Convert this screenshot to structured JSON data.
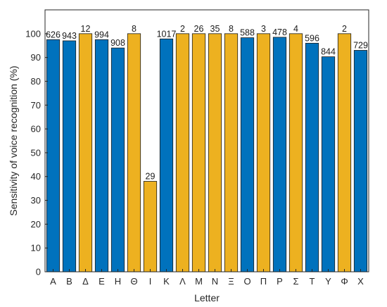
{
  "chart_data": {
    "type": "bar",
    "xlabel": "Letter",
    "ylabel": "Sensitivity of voice recognition (%)",
    "ylim": [
      0,
      110
    ],
    "yticks": [
      0,
      10,
      20,
      30,
      40,
      50,
      60,
      70,
      80,
      90,
      100
    ],
    "grid": false,
    "legend": "none",
    "categories": [
      "Α",
      "Β",
      "Δ",
      "Ε",
      "Η",
      "Θ",
      "Ι",
      "Κ",
      "Λ",
      "Μ",
      "Ν",
      "Ξ",
      "Ο",
      "Π",
      "Ρ",
      "Σ",
      "Τ",
      "Υ",
      "Φ",
      "Χ"
    ],
    "values": [
      97.5,
      97,
      100,
      97.5,
      94,
      100,
      38,
      97.8,
      100,
      100,
      100,
      100,
      98.3,
      100,
      98.5,
      100,
      96,
      90.3,
      100,
      93
    ],
    "data_labels": [
      "626",
      "943",
      "12",
      "994",
      "908",
      "8",
      "29",
      "1017",
      "2",
      "26",
      "35",
      "8",
      "588",
      "3",
      "478",
      "4",
      "596",
      "844",
      "2",
      "729"
    ],
    "bar_colors": [
      "#0072BD",
      "#0072BD",
      "#EDB120",
      "#0072BD",
      "#0072BD",
      "#EDB120",
      "#EDB120",
      "#0072BD",
      "#EDB120",
      "#EDB120",
      "#EDB120",
      "#EDB120",
      "#0072BD",
      "#EDB120",
      "#0072BD",
      "#EDB120",
      "#0072BD",
      "#0072BD",
      "#EDB120",
      "#0072BD"
    ]
  }
}
